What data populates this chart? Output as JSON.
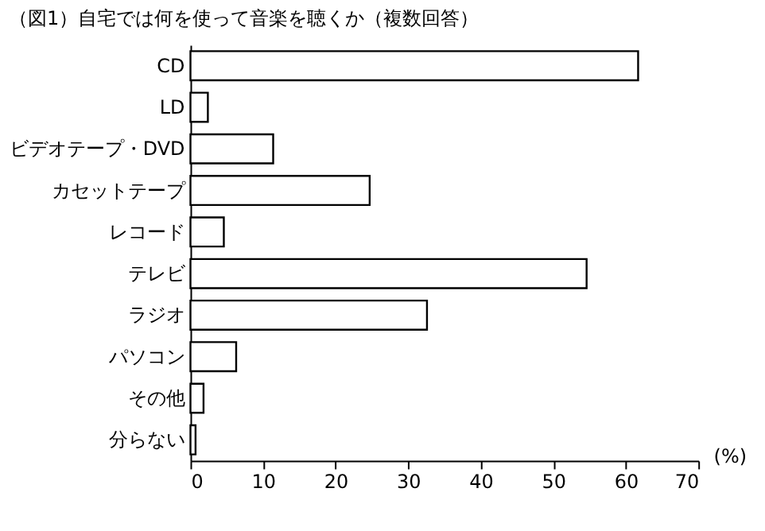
{
  "chart_data": {
    "type": "bar",
    "orientation": "horizontal",
    "title": "（図1）自宅では何を使って音楽を聴くか（複数回答）",
    "xlabel": "(%)",
    "categories": [
      "CD",
      "LD",
      "ビデオテープ・DVD",
      "カセットテープ",
      "レコード",
      "テレビ",
      "ラジオ",
      "パソコン",
      "その他",
      "分らない"
    ],
    "values": [
      61.7,
      2.4,
      11.4,
      24.7,
      4.6,
      54.6,
      32.6,
      6.3,
      1.8,
      0.7
    ],
    "color": "#ffffff",
    "xlim": [
      0,
      70
    ],
    "xticks": [
      0,
      10,
      20,
      30,
      40,
      50,
      60,
      70
    ],
    "grid": false
  }
}
